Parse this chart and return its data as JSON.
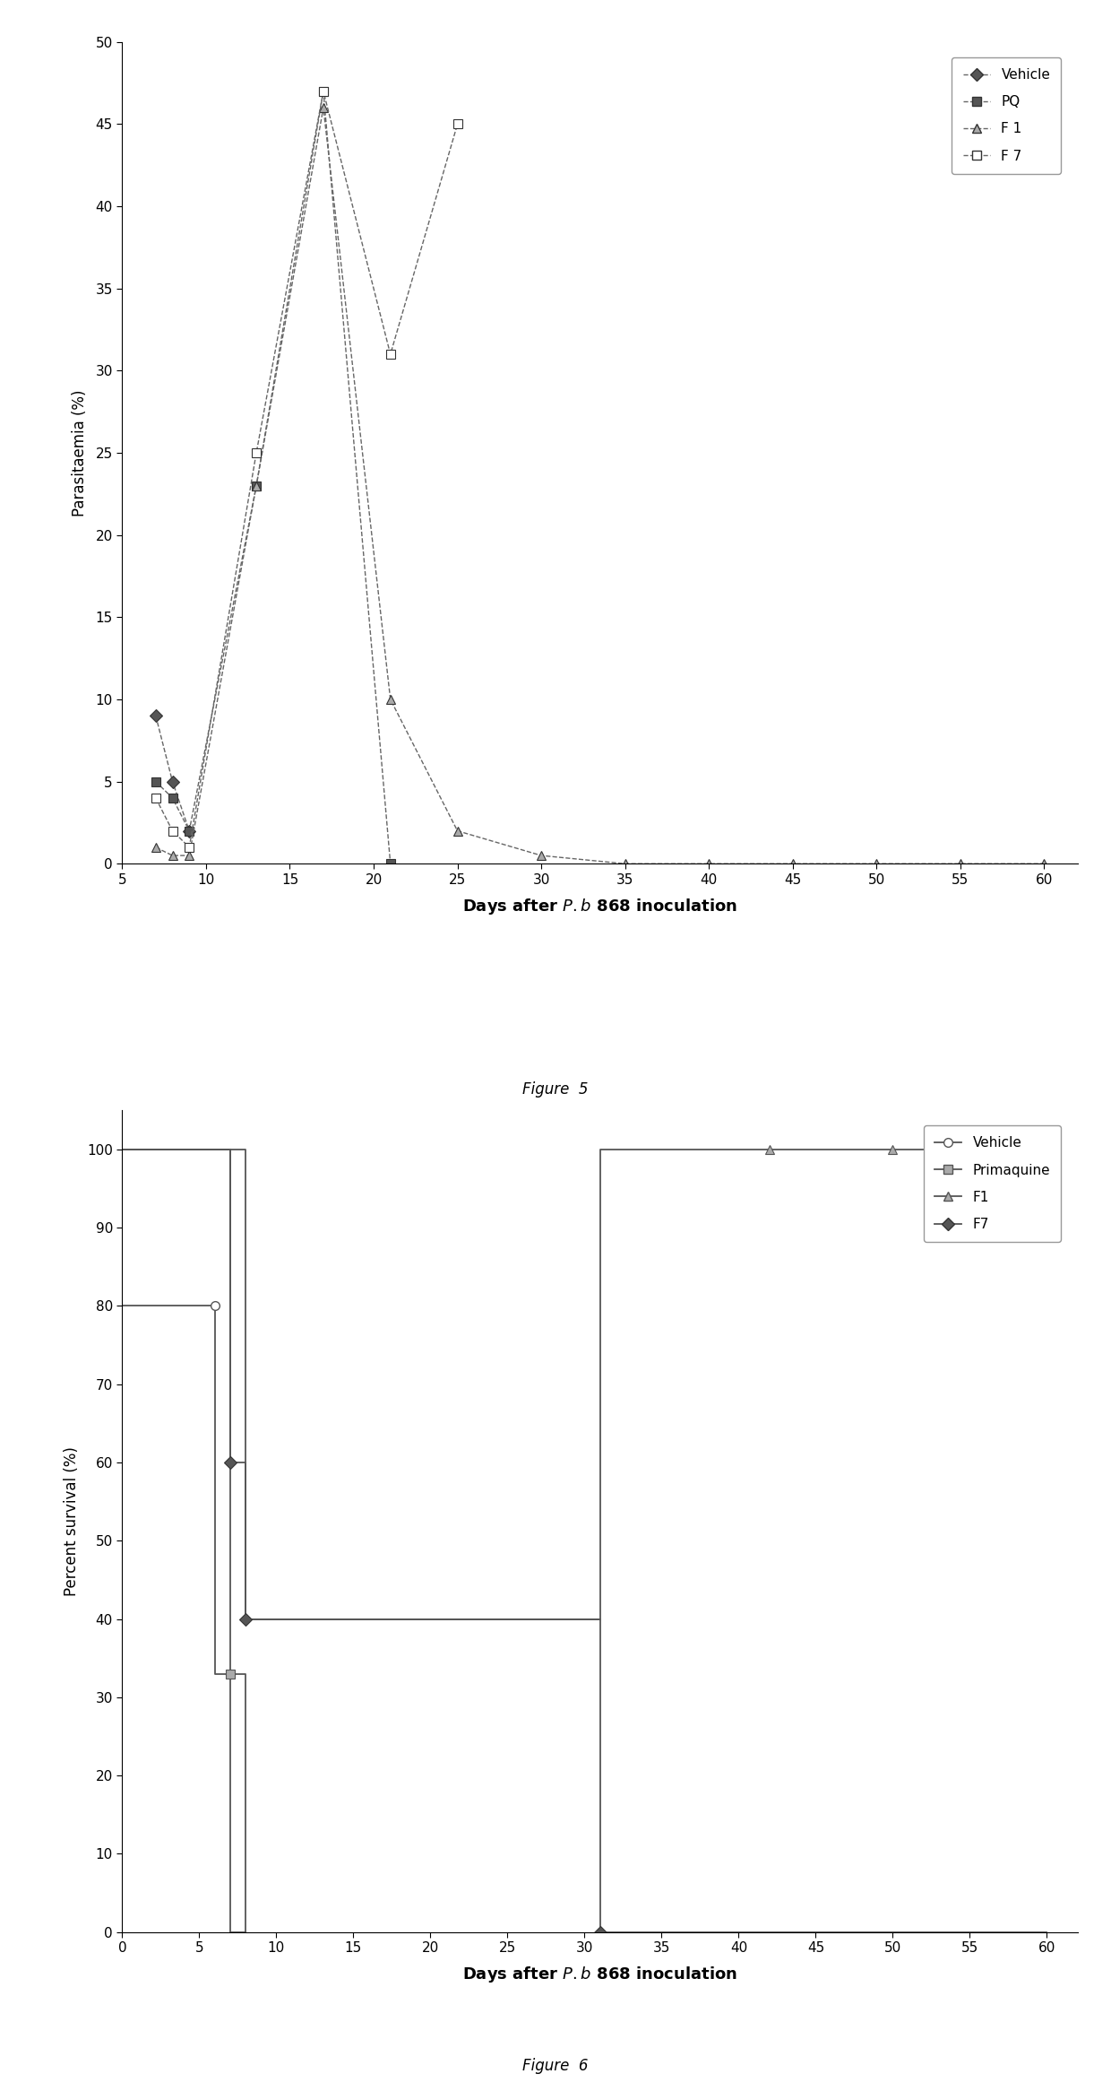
{
  "fig5": {
    "xlabel": "Days after $\\mathit{P.b}$ 868 inoculation",
    "ylabel": "Parasitaemia (%)",
    "figure_label": "Figure  5",
    "xlim": [
      5,
      62
    ],
    "ylim": [
      0,
      50
    ],
    "xticks": [
      5,
      10,
      15,
      20,
      25,
      30,
      35,
      40,
      45,
      50,
      55,
      60
    ],
    "yticks": [
      0,
      5,
      10,
      15,
      20,
      25,
      30,
      35,
      40,
      45,
      50
    ],
    "Vehicle": {
      "x": [
        7,
        8,
        9
      ],
      "y": [
        9,
        5,
        2
      ]
    },
    "PQ": {
      "x": [
        7,
        8,
        9,
        13,
        17,
        21
      ],
      "y": [
        5,
        4,
        2,
        23,
        47,
        0
      ]
    },
    "F1": {
      "x": [
        7,
        8,
        9,
        13,
        17,
        21,
        25,
        30,
        35,
        40,
        45,
        50,
        55,
        60
      ],
      "y": [
        1,
        0.5,
        0.5,
        23,
        46,
        10,
        2,
        0.5,
        0,
        0,
        0,
        0,
        0,
        0
      ]
    },
    "F7": {
      "x": [
        7,
        8,
        9,
        13,
        17,
        21,
        25
      ],
      "y": [
        4,
        2,
        1,
        25,
        47,
        31,
        45
      ]
    }
  },
  "fig6": {
    "xlabel": "Days after $\\mathit{P.b}$ 868 inoculation",
    "ylabel": "Percent survival (%)",
    "figure_label": "Figure  6",
    "xlim": [
      0,
      62
    ],
    "ylim": [
      0,
      105
    ],
    "xticks": [
      0,
      5,
      10,
      15,
      20,
      25,
      30,
      35,
      40,
      45,
      50,
      55,
      60
    ],
    "yticks": [
      0,
      10,
      20,
      30,
      40,
      50,
      60,
      70,
      80,
      90,
      100
    ]
  }
}
